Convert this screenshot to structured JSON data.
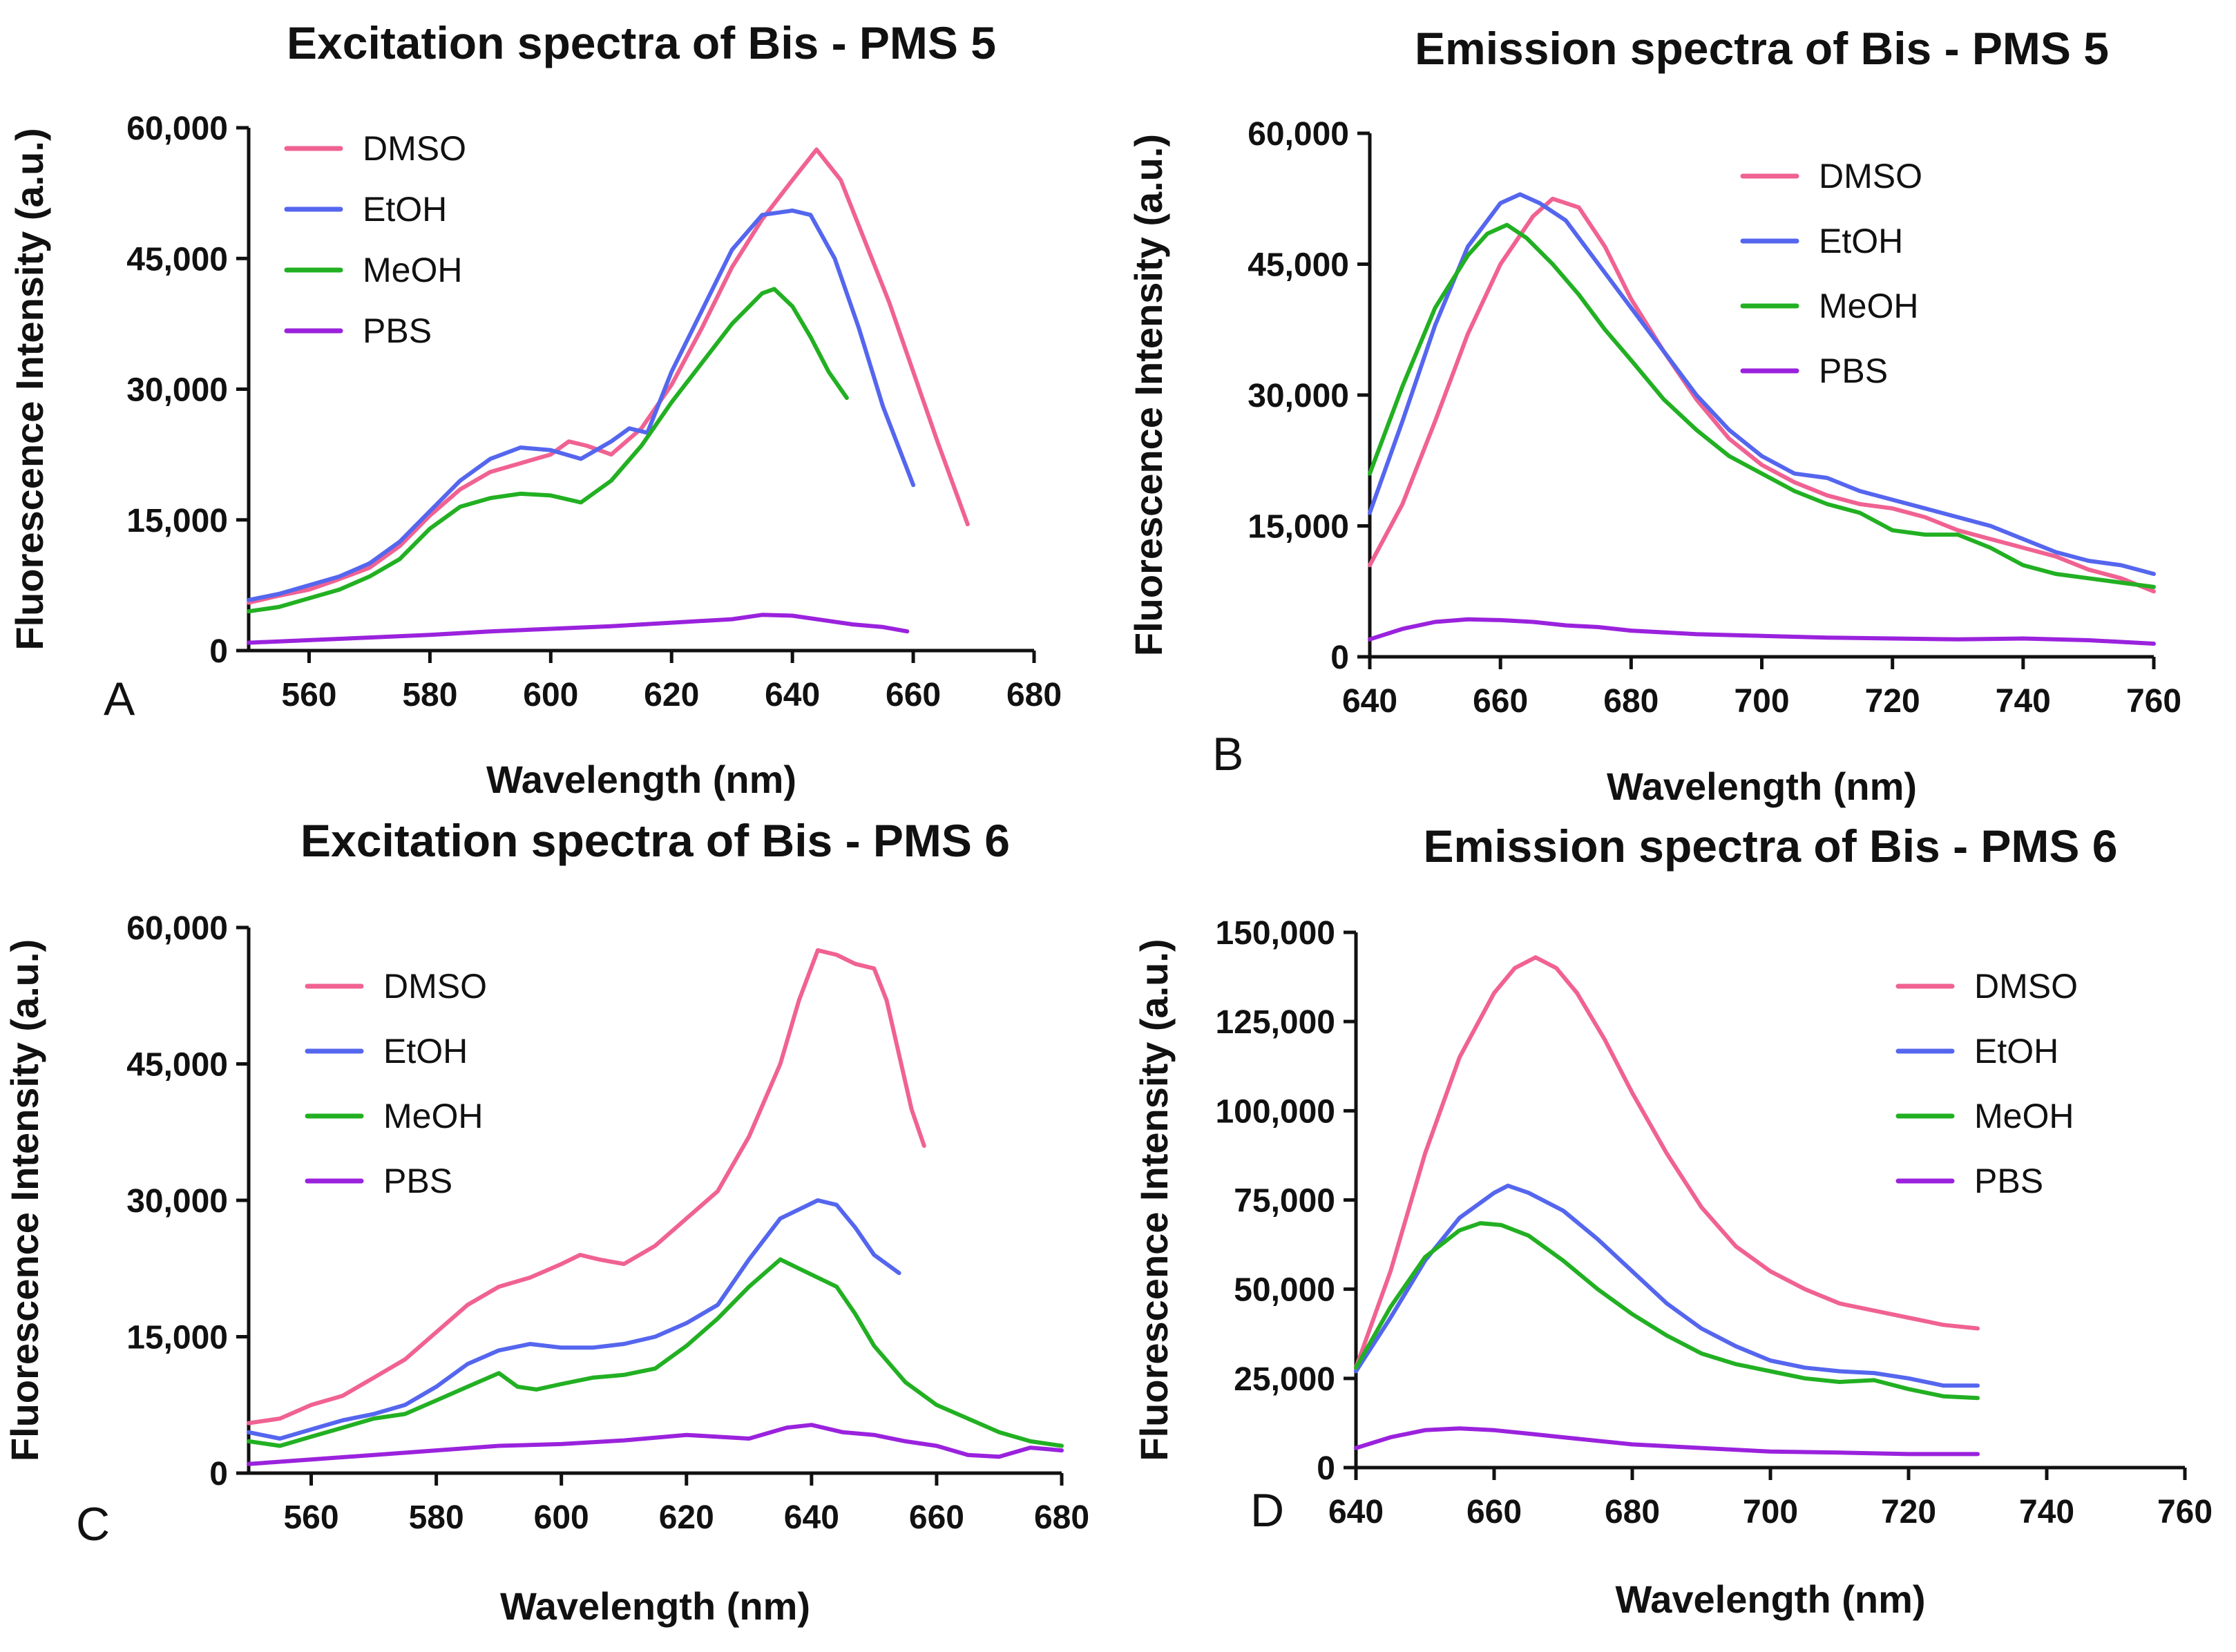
{
  "colors": {
    "DMSO": "#f06292",
    "EtOH": "#5566ee",
    "MeOH": "#22b022",
    "PBS": "#9a22dd",
    "axis": "#111111"
  },
  "chart_data": [
    {
      "type": "line",
      "panel_label": "A",
      "title": "Excitation spectra of Bis - PMS 5",
      "xlabel": "Wavelength (nm)",
      "ylabel": "Fluorescence Intensity (a.u.)",
      "xlim": [
        550,
        680
      ],
      "ylim": [
        0,
        60000
      ],
      "xticks": [
        560,
        580,
        600,
        620,
        640,
        660,
        680
      ],
      "xtick_labels": [
        "560",
        "580",
        "600",
        "620",
        "640",
        "660",
        "680"
      ],
      "yticks": [
        0,
        15000,
        30000,
        45000,
        60000
      ],
      "ytick_labels": [
        "0",
        "15,000",
        "30,000",
        "45,000",
        "60,000"
      ],
      "legend_position": "top-left",
      "series": [
        {
          "name": "DMSO",
          "x": [
            550,
            555,
            560,
            565,
            570,
            575,
            580,
            585,
            590,
            595,
            600,
            603,
            606,
            610,
            615,
            620,
            625,
            630,
            635,
            640,
            644,
            648,
            652,
            656,
            660,
            664,
            669
          ],
          "y": [
            5500,
            6300,
            7000,
            8200,
            9500,
            12000,
            15500,
            18500,
            20500,
            21500,
            22500,
            24000,
            23500,
            22500,
            25500,
            30500,
            37000,
            44000,
            49500,
            54000,
            57500,
            54000,
            47000,
            40000,
            32000,
            24000,
            14500
          ]
        },
        {
          "name": "EtOH",
          "x": [
            550,
            555,
            560,
            565,
            570,
            575,
            580,
            585,
            590,
            595,
            600,
            605,
            610,
            613,
            616,
            620,
            625,
            630,
            635,
            640,
            643,
            647,
            651,
            655,
            660
          ],
          "y": [
            5800,
            6500,
            7500,
            8500,
            10000,
            12500,
            16000,
            19500,
            22000,
            23300,
            23000,
            22000,
            24000,
            25500,
            25000,
            32000,
            39000,
            46000,
            50000,
            50500,
            50000,
            45000,
            37000,
            28000,
            19000
          ]
        },
        {
          "name": "MeOH",
          "x": [
            550,
            555,
            560,
            565,
            570,
            575,
            580,
            585,
            590,
            595,
            600,
            605,
            610,
            615,
            620,
            625,
            630,
            635,
            637,
            640,
            643,
            646,
            649
          ],
          "y": [
            4500,
            5000,
            6000,
            7000,
            8500,
            10500,
            14000,
            16500,
            17500,
            18000,
            17800,
            17000,
            19500,
            23500,
            28500,
            33000,
            37500,
            41000,
            41500,
            39500,
            36000,
            32000,
            29000
          ]
        },
        {
          "name": "PBS",
          "x": [
            550,
            560,
            570,
            580,
            590,
            600,
            610,
            620,
            630,
            635,
            640,
            645,
            650,
            655,
            659
          ],
          "y": [
            900,
            1200,
            1500,
            1800,
            2200,
            2500,
            2800,
            3200,
            3600,
            4100,
            4000,
            3500,
            3000,
            2700,
            2200
          ]
        }
      ]
    },
    {
      "type": "line",
      "panel_label": "B",
      "title": "Emission spectra of Bis - PMS 5",
      "xlabel": "Wavelength (nm)",
      "ylabel": "Fluorescence Intensity (a.u.)",
      "xlim": [
        640,
        760
      ],
      "ylim": [
        0,
        60000
      ],
      "xticks": [
        640,
        660,
        680,
        700,
        720,
        740,
        760
      ],
      "xtick_labels": [
        "640",
        "660",
        "680",
        "700",
        "720",
        "740",
        "760"
      ],
      "yticks": [
        0,
        15000,
        30000,
        45000,
        60000
      ],
      "ytick_labels": [
        "0",
        "15,000",
        "30,000",
        "45,000",
        "60,000"
      ],
      "legend_position": "top-right",
      "series": [
        {
          "name": "DMSO",
          "x": [
            640,
            645,
            650,
            655,
            660,
            665,
            668,
            672,
            676,
            680,
            685,
            690,
            695,
            700,
            705,
            710,
            715,
            720,
            725,
            730,
            735,
            740,
            745,
            750,
            755,
            760
          ],
          "y": [
            10500,
            17500,
            27000,
            37000,
            45000,
            50500,
            52500,
            51500,
            47000,
            41000,
            35000,
            29500,
            25000,
            22000,
            20000,
            18500,
            17500,
            17000,
            16000,
            14500,
            13500,
            12500,
            11500,
            10000,
            9000,
            7500
          ]
        },
        {
          "name": "EtOH",
          "x": [
            640,
            645,
            650,
            655,
            660,
            663,
            666,
            670,
            675,
            680,
            685,
            690,
            695,
            700,
            705,
            710,
            715,
            720,
            725,
            730,
            735,
            740,
            745,
            750,
            755,
            760
          ],
          "y": [
            16500,
            27000,
            38000,
            47000,
            52000,
            53000,
            52000,
            50000,
            45000,
            40000,
            35000,
            30000,
            26000,
            23000,
            21000,
            20500,
            19000,
            18000,
            17000,
            16000,
            15000,
            13500,
            12000,
            11000,
            10500,
            9500
          ]
        },
        {
          "name": "MeOH",
          "x": [
            640,
            645,
            650,
            655,
            658,
            661,
            664,
            668,
            672,
            676,
            680,
            685,
            690,
            695,
            700,
            705,
            710,
            715,
            720,
            725,
            730,
            735,
            740,
            745,
            750,
            755,
            760
          ],
          "y": [
            21000,
            31000,
            40000,
            46000,
            48500,
            49500,
            48000,
            45000,
            41500,
            37500,
            34000,
            29500,
            26000,
            23000,
            21000,
            19000,
            17500,
            16500,
            14500,
            14000,
            14000,
            12500,
            10500,
            9500,
            9000,
            8500,
            8000
          ]
        },
        {
          "name": "PBS",
          "x": [
            640,
            645,
            650,
            655,
            660,
            665,
            670,
            675,
            680,
            690,
            700,
            710,
            720,
            730,
            740,
            750,
            760
          ],
          "y": [
            2000,
            3200,
            4000,
            4300,
            4200,
            4000,
            3600,
            3400,
            3000,
            2600,
            2400,
            2200,
            2100,
            2000,
            2100,
            1900,
            1500
          ]
        }
      ]
    },
    {
      "type": "line",
      "panel_label": "C",
      "title": "Excitation spectra of Bis - PMS 6",
      "xlabel": "Wavelength (nm)",
      "ylabel": "Fluorescence Intensity (a.u.)",
      "xlim": [
        550,
        680
      ],
      "ylim": [
        0,
        60000
      ],
      "xticks": [
        560,
        580,
        600,
        620,
        640,
        660,
        680
      ],
      "xtick_labels": [
        "560",
        "580",
        "600",
        "620",
        "640",
        "660",
        "680"
      ],
      "yticks": [
        0,
        15000,
        30000,
        45000,
        60000
      ],
      "ytick_labels": [
        "0",
        "15,000",
        "30,000",
        "45,000",
        "60,000"
      ],
      "legend_position": "top-left",
      "series": [
        {
          "name": "DMSO",
          "x": [
            550,
            555,
            560,
            565,
            570,
            575,
            580,
            585,
            590,
            595,
            600,
            603,
            606,
            610,
            615,
            620,
            625,
            630,
            635,
            638,
            641,
            644,
            647,
            650,
            652,
            654,
            656,
            658
          ],
          "y": [
            5500,
            6000,
            7500,
            8500,
            10500,
            12500,
            15500,
            18500,
            20500,
            21500,
            23000,
            24000,
            23500,
            23000,
            25000,
            28000,
            31000,
            37000,
            45000,
            52000,
            57500,
            57000,
            56000,
            55500,
            52000,
            46000,
            40000,
            36000
          ]
        },
        {
          "name": "EtOH",
          "x": [
            550,
            555,
            560,
            565,
            570,
            575,
            580,
            585,
            590,
            595,
            600,
            605,
            610,
            615,
            620,
            625,
            630,
            635,
            638,
            641,
            644,
            647,
            650,
            654
          ],
          "y": [
            4500,
            3800,
            4800,
            5800,
            6500,
            7500,
            9500,
            12000,
            13500,
            14200,
            13800,
            13800,
            14200,
            15000,
            16500,
            18500,
            23500,
            28000,
            29000,
            30000,
            29500,
            27000,
            24000,
            22000
          ]
        },
        {
          "name": "MeOH",
          "x": [
            550,
            555,
            560,
            565,
            570,
            575,
            580,
            585,
            590,
            593,
            596,
            600,
            605,
            610,
            615,
            620,
            625,
            630,
            635,
            638,
            641,
            644,
            647,
            650,
            655,
            660,
            665,
            670,
            675,
            680
          ],
          "y": [
            3500,
            3000,
            4000,
            5000,
            6000,
            6500,
            8000,
            9500,
            11000,
            9500,
            9200,
            9800,
            10500,
            10800,
            11500,
            14000,
            17000,
            20500,
            23500,
            22500,
            21500,
            20500,
            17500,
            14000,
            10000,
            7500,
            6000,
            4500,
            3500,
            3000
          ]
        },
        {
          "name": "PBS",
          "x": [
            550,
            560,
            570,
            580,
            590,
            600,
            610,
            620,
            630,
            636,
            640,
            645,
            650,
            655,
            660,
            665,
            670,
            675,
            680
          ],
          "y": [
            1000,
            1500,
            2000,
            2500,
            3000,
            3200,
            3600,
            4200,
            3800,
            5000,
            5300,
            4500,
            4200,
            3500,
            3000,
            2000,
            1800,
            2800,
            2500
          ]
        }
      ]
    },
    {
      "type": "line",
      "panel_label": "D",
      "title": "Emission spectra of Bis - PMS 6",
      "xlabel": "Wavelength (nm)",
      "ylabel": "Fluorescence Intensity (a.u.)",
      "xlim": [
        640,
        760
      ],
      "ylim": [
        0,
        150000
      ],
      "xticks": [
        640,
        660,
        680,
        700,
        720,
        740,
        760
      ],
      "xtick_labels": [
        "640",
        "660",
        "680",
        "700",
        "720",
        "740",
        "760"
      ],
      "yticks": [
        0,
        25000,
        50000,
        75000,
        100000,
        125000,
        150000
      ],
      "ytick_labels": [
        "0",
        "25,000",
        "50,000",
        "75,000",
        "100,000",
        "125,000",
        "150,000"
      ],
      "legend_position": "top-right",
      "series": [
        {
          "name": "DMSO",
          "x": [
            640,
            645,
            650,
            655,
            660,
            663,
            666,
            669,
            672,
            676,
            680,
            685,
            690,
            695,
            700,
            705,
            710,
            715,
            720,
            725,
            730
          ],
          "y": [
            28000,
            55000,
            88000,
            115000,
            133000,
            140000,
            143000,
            140000,
            133000,
            120000,
            105000,
            88000,
            73000,
            62000,
            55000,
            50000,
            46000,
            44000,
            42000,
            40000,
            39000
          ]
        },
        {
          "name": "EtOH",
          "x": [
            640,
            645,
            650,
            655,
            660,
            662,
            665,
            670,
            675,
            680,
            685,
            690,
            695,
            700,
            705,
            710,
            715,
            720,
            725,
            730
          ],
          "y": [
            27000,
            42000,
            58000,
            70000,
            77000,
            79000,
            77000,
            72000,
            64000,
            55000,
            46000,
            39000,
            34000,
            30000,
            28000,
            27000,
            26500,
            25000,
            23000,
            23000
          ]
        },
        {
          "name": "MeOH",
          "x": [
            640,
            645,
            650,
            655,
            658,
            661,
            665,
            670,
            675,
            680,
            685,
            690,
            695,
            700,
            705,
            710,
            715,
            720,
            725,
            730
          ],
          "y": [
            28000,
            45000,
            59000,
            66500,
            68500,
            68000,
            65000,
            58000,
            50000,
            43000,
            37000,
            32000,
            29000,
            27000,
            25000,
            24000,
            24500,
            22000,
            20000,
            19500
          ]
        },
        {
          "name": "PBS",
          "x": [
            640,
            645,
            650,
            655,
            660,
            665,
            670,
            680,
            690,
            700,
            710,
            720,
            730
          ],
          "y": [
            5500,
            8500,
            10500,
            11000,
            10500,
            9500,
            8500,
            6500,
            5500,
            4500,
            4200,
            3800,
            3800
          ]
        }
      ]
    }
  ]
}
